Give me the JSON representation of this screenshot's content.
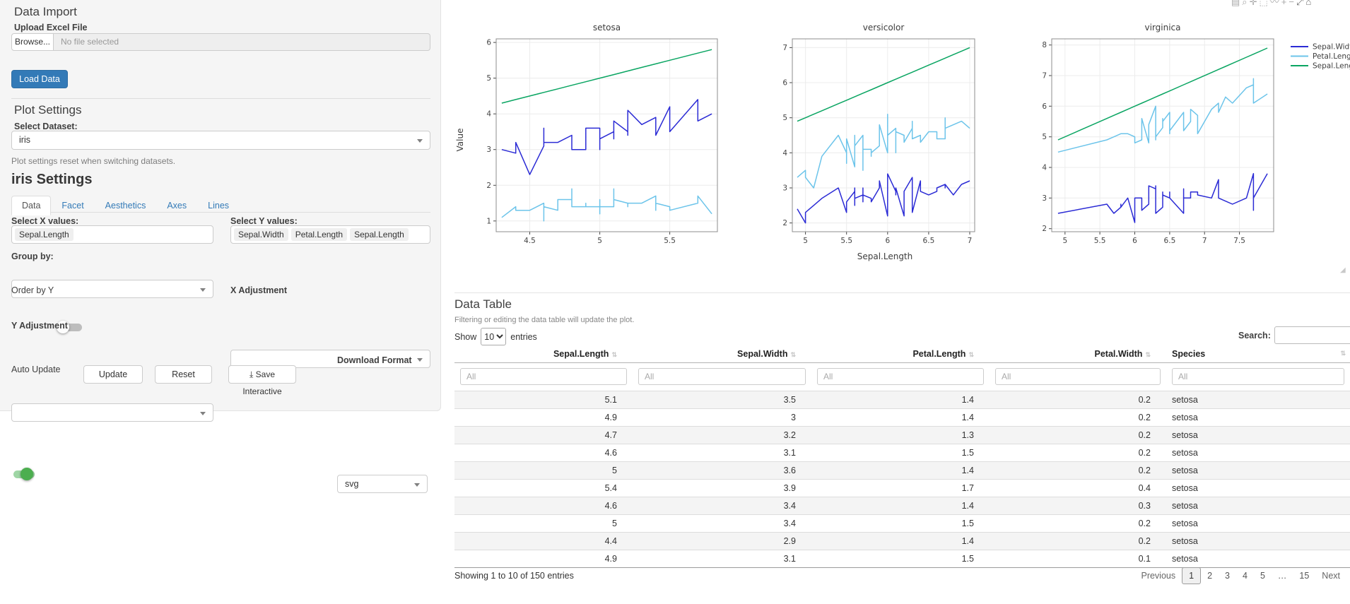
{
  "sidebar": {
    "data_import": {
      "title": "Data Import",
      "upload_label": "Upload Excel File",
      "browse_label": "Browse...",
      "file_placeholder": "No file selected",
      "load_button": "Load Data"
    },
    "plot_settings": {
      "title": "Plot Settings",
      "dataset_label": "Select Dataset:",
      "dataset_value": "iris",
      "note": "Plot settings reset when switching datasets."
    },
    "settings": {
      "title": "iris Settings",
      "tabs": [
        "Data",
        "Facet",
        "Aesthetics",
        "Axes",
        "Lines"
      ],
      "active_tab": "Data",
      "x_label": "Select X values:",
      "x_values": [
        "Sepal.Length"
      ],
      "y_label": "Select Y values:",
      "y_values": [
        "Sepal.Width",
        "Petal.Length",
        "Sepal.Length"
      ],
      "group_label": "Group by:",
      "order_label": "Order by Y",
      "x_adjust_label": "X Adjustment",
      "y_adjust_label": "Y Adjustment",
      "auto_update_label": "Auto Update",
      "update_button": "Update",
      "reset_button": "Reset",
      "save_button": "Save Interactive",
      "save_icon": "⤓",
      "download_label": "Download Format",
      "download_value": "svg"
    }
  },
  "modebar": {
    "icons": [
      {
        "name": "download-plot-icon",
        "glyph": "▤"
      },
      {
        "name": "zoom-icon",
        "glyph": "⌕"
      },
      {
        "name": "pan-icon",
        "glyph": "✛"
      },
      {
        "name": "box-select-icon",
        "glyph": "⬚"
      },
      {
        "name": "lasso-select-icon",
        "glyph": "〰"
      },
      {
        "name": "zoom-in-icon",
        "glyph": "+"
      },
      {
        "name": "zoom-out-icon",
        "glyph": "−"
      },
      {
        "name": "autoscale-icon",
        "glyph": "⤢"
      },
      {
        "name": "reset-axes-icon",
        "glyph": "⌂"
      }
    ]
  },
  "chart_data": {
    "type": "line",
    "xlabel": "Sepal.Length",
    "ylabel": "Value",
    "legend_position": "right",
    "grid": true,
    "series": [
      {
        "name": "Sepal.Width",
        "color": "#2b2bd5",
        "col": 1
      },
      {
        "name": "Petal.Length",
        "color": "#6cc4ea",
        "col": 2
      },
      {
        "name": "Sepal.Length",
        "color": "#0aa562",
        "col": 0
      }
    ],
    "facets": [
      {
        "title": "setosa",
        "species": "setosa",
        "x_range": [
          4.26,
          5.84
        ],
        "x_ticks": [
          4.5,
          5,
          5.5
        ],
        "y_range": [
          0.7,
          6.1
        ],
        "y_ticks": [
          1,
          2,
          3,
          4,
          5,
          6
        ]
      },
      {
        "title": "versicolor",
        "species": "versicolor",
        "x_range": [
          4.84,
          7.06
        ],
        "x_ticks": [
          5,
          5.5,
          6,
          6.5,
          7
        ],
        "y_range": [
          1.75,
          7.25
        ],
        "y_ticks": [
          2,
          3,
          4,
          5,
          6,
          7
        ]
      },
      {
        "title": "virginica",
        "species": "virginica",
        "x_range": [
          4.81,
          7.99
        ],
        "x_ticks": [
          5,
          5.5,
          6,
          6.5,
          7,
          7.5
        ],
        "y_range": [
          1.9,
          8.2
        ],
        "y_ticks": [
          2,
          3,
          4,
          5,
          6,
          7,
          8
        ]
      }
    ],
    "points_format": [
      "Sepal.Length",
      "Sepal.Width",
      "Petal.Length"
    ],
    "points": {
      "setosa": [
        [
          5.1,
          3.5,
          1.4
        ],
        [
          4.9,
          3.0,
          1.4
        ],
        [
          4.7,
          3.2,
          1.3
        ],
        [
          4.6,
          3.1,
          1.5
        ],
        [
          5.0,
          3.6,
          1.4
        ],
        [
          5.4,
          3.9,
          1.7
        ],
        [
          4.6,
          3.4,
          1.4
        ],
        [
          5.0,
          3.4,
          1.5
        ],
        [
          4.4,
          2.9,
          1.4
        ],
        [
          4.9,
          3.1,
          1.5
        ],
        [
          5.4,
          3.7,
          1.5
        ],
        [
          4.8,
          3.4,
          1.6
        ],
        [
          4.8,
          3.0,
          1.4
        ],
        [
          4.3,
          3.0,
          1.1
        ],
        [
          5.8,
          4.0,
          1.2
        ],
        [
          5.7,
          4.4,
          1.5
        ],
        [
          5.4,
          3.9,
          1.3
        ],
        [
          5.1,
          3.5,
          1.4
        ],
        [
          5.7,
          3.8,
          1.7
        ],
        [
          5.1,
          3.8,
          1.5
        ],
        [
          5.4,
          3.4,
          1.7
        ],
        [
          5.1,
          3.7,
          1.5
        ],
        [
          4.6,
          3.6,
          1.0
        ],
        [
          5.1,
          3.3,
          1.7
        ],
        [
          4.8,
          3.4,
          1.9
        ],
        [
          5.0,
          3.0,
          1.6
        ],
        [
          5.0,
          3.4,
          1.6
        ],
        [
          5.2,
          3.5,
          1.5
        ],
        [
          5.2,
          3.4,
          1.4
        ],
        [
          4.7,
          3.2,
          1.6
        ],
        [
          4.8,
          3.1,
          1.6
        ],
        [
          5.4,
          3.4,
          1.5
        ],
        [
          5.2,
          4.1,
          1.5
        ],
        [
          5.5,
          4.2,
          1.4
        ],
        [
          4.9,
          3.1,
          1.5
        ],
        [
          5.0,
          3.2,
          1.2
        ],
        [
          5.5,
          3.5,
          1.3
        ],
        [
          4.9,
          3.6,
          1.4
        ],
        [
          4.4,
          3.0,
          1.3
        ],
        [
          5.1,
          3.4,
          1.5
        ],
        [
          5.0,
          3.5,
          1.3
        ],
        [
          4.5,
          2.3,
          1.3
        ],
        [
          4.4,
          3.2,
          1.3
        ],
        [
          5.0,
          3.5,
          1.6
        ],
        [
          5.1,
          3.8,
          1.9
        ],
        [
          4.8,
          3.0,
          1.4
        ],
        [
          5.1,
          3.8,
          1.6
        ],
        [
          4.6,
          3.2,
          1.4
        ],
        [
          5.3,
          3.7,
          1.5
        ],
        [
          5.0,
          3.3,
          1.4
        ]
      ],
      "versicolor": [
        [
          7.0,
          3.2,
          4.7
        ],
        [
          6.4,
          3.2,
          4.5
        ],
        [
          6.9,
          3.1,
          4.9
        ],
        [
          5.5,
          2.3,
          4.0
        ],
        [
          6.5,
          2.8,
          4.6
        ],
        [
          5.7,
          2.8,
          4.5
        ],
        [
          6.3,
          3.3,
          4.7
        ],
        [
          4.9,
          2.4,
          3.3
        ],
        [
          6.6,
          2.9,
          4.6
        ],
        [
          5.2,
          2.7,
          3.9
        ],
        [
          5.0,
          2.0,
          3.5
        ],
        [
          5.9,
          3.0,
          4.2
        ],
        [
          6.0,
          2.2,
          4.0
        ],
        [
          6.1,
          2.9,
          4.7
        ],
        [
          5.6,
          2.9,
          3.6
        ],
        [
          6.7,
          3.1,
          4.4
        ],
        [
          5.6,
          3.0,
          4.5
        ],
        [
          5.8,
          2.7,
          4.1
        ],
        [
          6.2,
          2.2,
          4.5
        ],
        [
          5.6,
          2.5,
          3.9
        ],
        [
          5.9,
          3.2,
          4.8
        ],
        [
          6.1,
          2.8,
          4.0
        ],
        [
          6.3,
          2.5,
          4.9
        ],
        [
          6.1,
          2.8,
          4.7
        ],
        [
          6.4,
          2.9,
          4.3
        ],
        [
          6.6,
          3.0,
          4.4
        ],
        [
          6.8,
          2.8,
          4.8
        ],
        [
          6.7,
          3.0,
          5.0
        ],
        [
          6.0,
          2.9,
          4.5
        ],
        [
          5.7,
          2.6,
          3.5
        ],
        [
          5.5,
          2.4,
          3.8
        ],
        [
          5.5,
          2.4,
          3.7
        ],
        [
          5.8,
          2.7,
          3.9
        ],
        [
          6.0,
          2.7,
          5.1
        ],
        [
          5.4,
          3.0,
          4.5
        ],
        [
          6.0,
          3.4,
          4.5
        ],
        [
          6.7,
          3.1,
          4.7
        ],
        [
          6.3,
          2.3,
          4.4
        ],
        [
          5.6,
          3.0,
          4.1
        ],
        [
          5.5,
          2.5,
          4.0
        ],
        [
          5.5,
          2.6,
          4.4
        ],
        [
          6.1,
          3.0,
          4.6
        ],
        [
          5.8,
          2.6,
          4.0
        ],
        [
          5.0,
          2.3,
          3.3
        ],
        [
          5.6,
          2.7,
          4.2
        ],
        [
          5.7,
          3.0,
          4.2
        ],
        [
          5.7,
          2.9,
          4.2
        ],
        [
          6.2,
          2.9,
          4.3
        ],
        [
          5.1,
          2.5,
          3.0
        ],
        [
          5.7,
          2.8,
          4.1
        ]
      ],
      "virginica": [
        [
          6.3,
          3.3,
          6.0
        ],
        [
          5.8,
          2.7,
          5.1
        ],
        [
          7.1,
          3.0,
          5.9
        ],
        [
          6.3,
          2.9,
          5.6
        ],
        [
          6.5,
          3.0,
          5.8
        ],
        [
          7.6,
          3.0,
          6.6
        ],
        [
          4.9,
          2.5,
          4.5
        ],
        [
          7.3,
          2.9,
          6.3
        ],
        [
          6.7,
          2.5,
          5.8
        ],
        [
          7.2,
          3.6,
          6.1
        ],
        [
          6.5,
          3.2,
          5.1
        ],
        [
          6.4,
          2.7,
          5.3
        ],
        [
          6.8,
          3.0,
          5.5
        ],
        [
          5.7,
          2.5,
          5.0
        ],
        [
          5.8,
          2.8,
          5.1
        ],
        [
          6.4,
          3.2,
          5.3
        ],
        [
          6.5,
          3.0,
          5.5
        ],
        [
          7.7,
          3.8,
          6.7
        ],
        [
          7.7,
          2.6,
          6.9
        ],
        [
          6.0,
          2.2,
          5.0
        ],
        [
          6.9,
          3.2,
          5.7
        ],
        [
          5.6,
          2.8,
          4.9
        ],
        [
          7.7,
          2.8,
          6.7
        ],
        [
          6.3,
          2.7,
          4.9
        ],
        [
          6.7,
          3.3,
          5.7
        ],
        [
          7.2,
          3.2,
          6.0
        ],
        [
          6.2,
          2.8,
          4.8
        ],
        [
          6.1,
          3.0,
          4.9
        ],
        [
          6.4,
          2.8,
          5.6
        ],
        [
          7.2,
          3.0,
          5.8
        ],
        [
          7.4,
          2.8,
          6.1
        ],
        [
          7.9,
          3.8,
          6.4
        ],
        [
          6.4,
          2.8,
          5.6
        ],
        [
          6.3,
          2.8,
          5.1
        ],
        [
          6.1,
          2.6,
          5.6
        ],
        [
          7.7,
          3.0,
          6.1
        ],
        [
          6.3,
          3.4,
          5.6
        ],
        [
          6.4,
          3.1,
          5.5
        ],
        [
          6.0,
          3.0,
          4.8
        ],
        [
          6.9,
          3.1,
          5.4
        ],
        [
          6.7,
          3.1,
          5.6
        ],
        [
          6.9,
          3.1,
          5.1
        ],
        [
          5.8,
          2.7,
          5.1
        ],
        [
          6.8,
          3.2,
          5.9
        ],
        [
          6.7,
          3.3,
          5.7
        ],
        [
          6.7,
          3.0,
          5.2
        ],
        [
          6.3,
          2.5,
          5.0
        ],
        [
          6.5,
          3.0,
          5.2
        ],
        [
          6.2,
          3.4,
          5.4
        ],
        [
          5.9,
          3.0,
          5.1
        ]
      ]
    }
  },
  "table": {
    "title": "Data Table",
    "note": "Filtering or editing the data table will update the plot.",
    "show_label": "Show",
    "show_value": "10",
    "entries_label": "entries",
    "search_label": "Search:",
    "filter_placeholder": "All",
    "columns": [
      {
        "label": "Sepal.Length",
        "align": "num"
      },
      {
        "label": "Sepal.Width",
        "align": "num"
      },
      {
        "label": "Petal.Length",
        "align": "num"
      },
      {
        "label": "Petal.Width",
        "align": "num"
      },
      {
        "label": "Species",
        "align": "str"
      }
    ],
    "rows": [
      [
        "5.1",
        "3.5",
        "1.4",
        "0.2",
        "setosa"
      ],
      [
        "4.9",
        "3",
        "1.4",
        "0.2",
        "setosa"
      ],
      [
        "4.7",
        "3.2",
        "1.3",
        "0.2",
        "setosa"
      ],
      [
        "4.6",
        "3.1",
        "1.5",
        "0.2",
        "setosa"
      ],
      [
        "5",
        "3.6",
        "1.4",
        "0.2",
        "setosa"
      ],
      [
        "5.4",
        "3.9",
        "1.7",
        "0.4",
        "setosa"
      ],
      [
        "4.6",
        "3.4",
        "1.4",
        "0.3",
        "setosa"
      ],
      [
        "5",
        "3.4",
        "1.5",
        "0.2",
        "setosa"
      ],
      [
        "4.4",
        "2.9",
        "1.4",
        "0.2",
        "setosa"
      ],
      [
        "4.9",
        "3.1",
        "1.5",
        "0.1",
        "setosa"
      ]
    ],
    "info": "Showing 1 to 10 of 150 entries",
    "pagination": {
      "previous": "Previous",
      "pages": [
        "1",
        "2",
        "3",
        "4",
        "5",
        "…",
        "15"
      ],
      "current": "1",
      "next": "Next"
    }
  }
}
